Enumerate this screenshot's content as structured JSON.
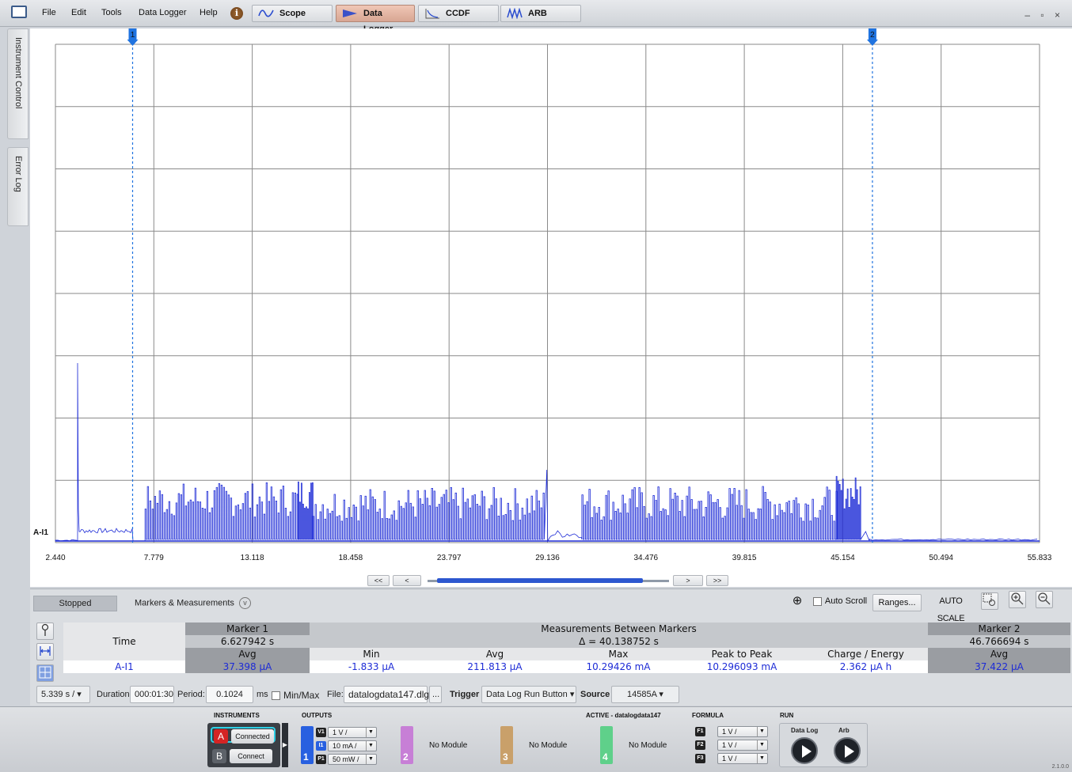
{
  "menu": {
    "file": "File",
    "edit": "Edit",
    "tools": "Tools",
    "data_logger": "Data Logger",
    "help": "Help",
    "info_glyph": "i"
  },
  "tabs": {
    "scope": "Scope",
    "data_logger": "Data Logger",
    "ccdf": "CCDF",
    "arb": "ARB"
  },
  "window_controls": "– ▫ ×",
  "side_tabs": {
    "instrument_control": "Instrument Control",
    "error_log": "Error Log"
  },
  "graph": {
    "marker1_label": "1",
    "marker2_label": "2",
    "trace_label": "A-I1",
    "x_ticks": [
      "2.440",
      "7.779",
      "13.118",
      "18.458",
      "23.797",
      "29.136",
      "34.476",
      "39.815",
      "45.154",
      "50.494",
      "55.833"
    ],
    "trace_color": "#1d2bd6",
    "marker_color": "#1f73e0"
  },
  "chart_data": {
    "type": "line",
    "title": "",
    "xlabel": "",
    "ylabel": "",
    "xlim": [
      2.44,
      55.833
    ],
    "series": [
      {
        "name": "A-I1",
        "x": [
          2.44,
          3.6,
          3.7,
          3.8,
          5.6,
          7.0,
          7.3,
          7.3,
          15.6,
          15.8,
          16.4,
          16.9,
          17.0,
          28.9,
          29.1,
          29.3,
          30.9,
          31.1,
          44.8,
          45.1,
          46.0,
          46.4,
          48.0,
          55.833
        ],
        "y_pattern": [
          "baseline",
          "baseline",
          "large-spike",
          "low",
          "low-burst",
          "baseline",
          "onset",
          "burst",
          "higher-burst",
          "higher-burst",
          "burst",
          "burst",
          "burst",
          "burst",
          "peak",
          "baseline",
          "baseline",
          "burst",
          "burst",
          "higher-burst",
          "higher-burst",
          "baseline",
          "baseline",
          "baseline"
        ]
      }
    ],
    "grid": true
  },
  "nav": {
    "first": "<<",
    "prev": "<",
    "next": ">",
    "last": ">>"
  },
  "panel": {
    "status": "Stopped",
    "markers_measurements": "Markers & Measurements",
    "expand_glyph": "v",
    "crosshair_glyph": "⊕",
    "auto_scroll": "Auto Scroll",
    "ranges": "Ranges...",
    "auto_scale": "AUTO SCALE",
    "zoom_in_glyph": "+",
    "zoom_out_glyph": "−"
  },
  "measurements": {
    "marker1_header": "Marker 1",
    "between_header": "Measurements Between Markers",
    "marker2_header": "Marker 2",
    "time_label": "Time",
    "marker1_time": "6.627942 s",
    "delta": "Δ = 40.138752 s",
    "marker2_time": "46.766694 s",
    "avg_header": "Avg",
    "min_header": "Min",
    "avg_between_header": "Avg",
    "max_header": "Max",
    "p2p_header": "Peak to Peak",
    "charge_header": "Charge / Energy",
    "avg2_header": "Avg",
    "channel": "A-I1",
    "marker1_avg": "37.398 µA",
    "min": "-1.833 µA",
    "avg": "211.813 µA",
    "max": "10.29426 mA",
    "p2p": "10.296093 mA",
    "charge": "2.362 µA h",
    "marker2_avg": "37.422 µA"
  },
  "config": {
    "timebase": "5.339 s /",
    "duration_label": "Duration:",
    "duration": "000:01:30",
    "period_label": "Period:",
    "period": "0.1024",
    "period_unit": "ms",
    "minmax": "Min/Max",
    "file_label": "File:",
    "file": "datalogdata147.dlg",
    "file_btn": "...",
    "trigger_label": "Trigger",
    "trigger": "Data Log Run Button",
    "source_label": "Source",
    "source": "14585A"
  },
  "dock": {
    "instruments_head": "INSTRUMENTS",
    "outputs_head": "OUTPUTS",
    "active_head": "ACTIVE - datalogdata147",
    "formula_head": "FORMULA",
    "run_head": "RUN",
    "inst_a_letter": "A",
    "inst_a_status": "Connected",
    "inst_b_letter": "B",
    "inst_b_status": "Connect",
    "ch1_v": "V1",
    "ch1_v_range": "1 V /",
    "ch1_i": "I1",
    "ch1_i_range": "10 mA /",
    "ch1_p": "P1",
    "ch1_p_range": "50 mW /",
    "slot1": "1",
    "slot2": "2",
    "slot3": "3",
    "slot4": "4",
    "slot2_label": "No Module",
    "slot3_label": "No Module",
    "slot4_label": "No Module",
    "f1": "F1",
    "f2": "F2",
    "f3": "F3",
    "f1_range": "1 V /",
    "f2_range": "1 V /",
    "f3_range": "1 V /",
    "run_datalog": "Data Log",
    "run_arb": "Arb",
    "version": "2.1.0.0"
  }
}
